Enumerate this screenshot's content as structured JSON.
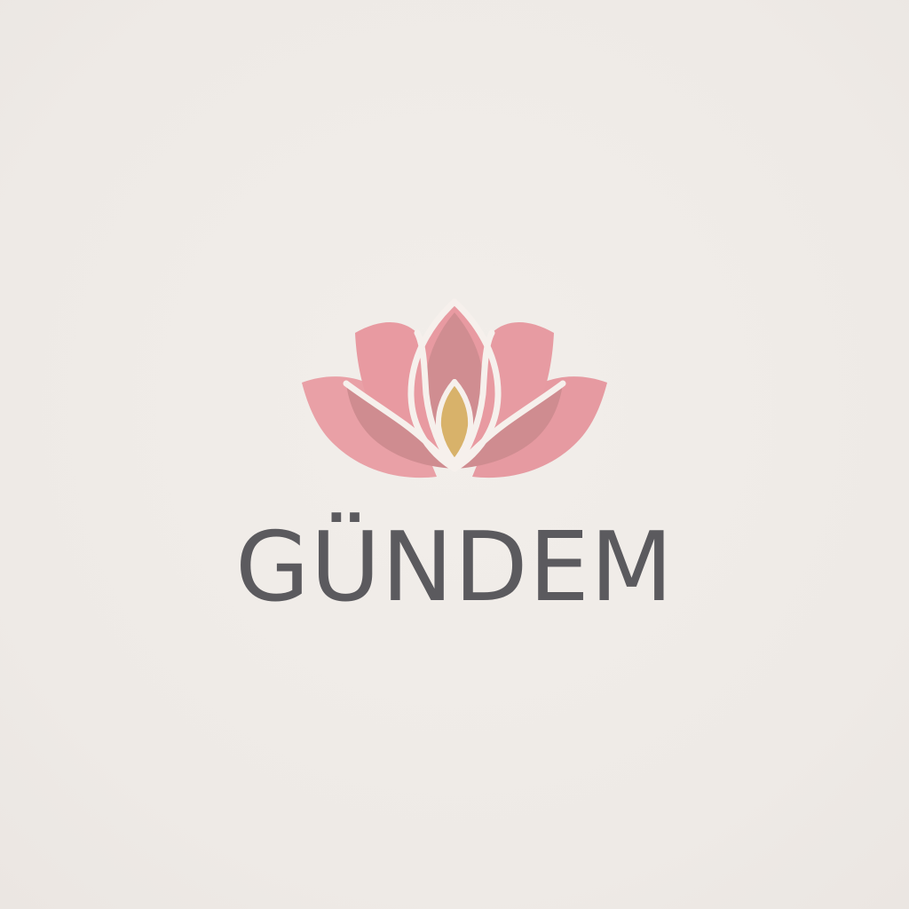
{
  "brand": {
    "name": "GÜNDEM",
    "text_color": "#5b5a5e",
    "background_color": "#eeeae6"
  },
  "logo": {
    "icon": "lotus-flower-icon",
    "colors": {
      "outer_petal": "#e9a0a6",
      "middle_petal": "#e89aa1",
      "inner_petal": "#cf8c90",
      "center_bud": "#d8b26a",
      "outline": "#f6f0ec"
    }
  }
}
